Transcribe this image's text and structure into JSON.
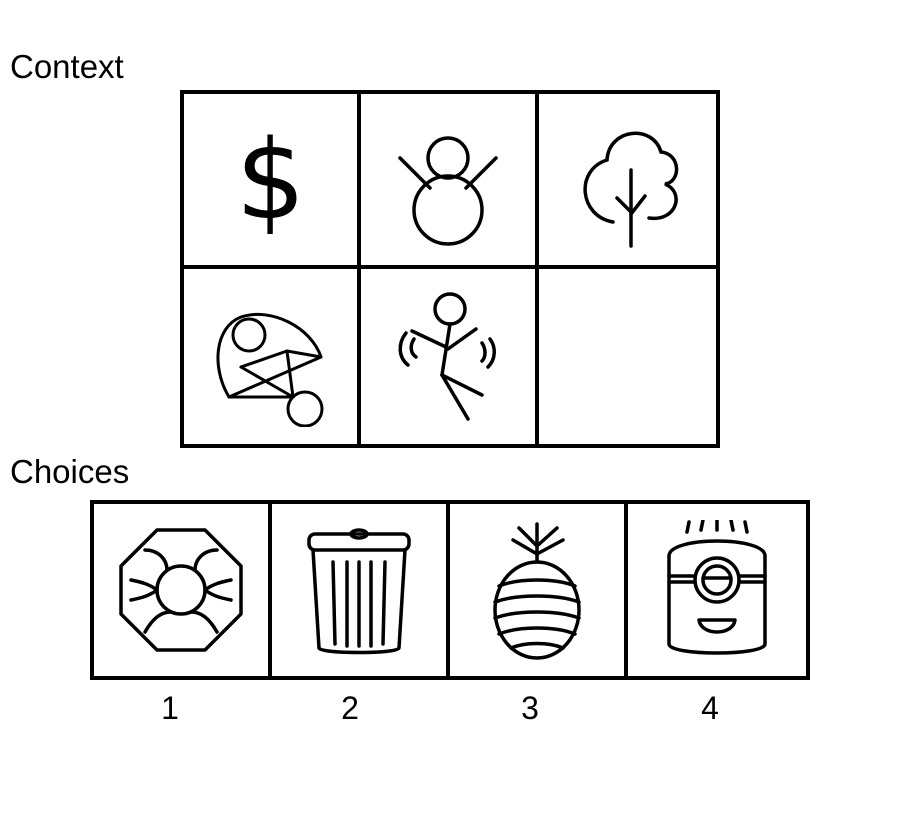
{
  "context": {
    "label": "Context",
    "cells": [
      {
        "icon": "dollar-sign-icon",
        "symbol": "$"
      },
      {
        "icon": "snowman-icon"
      },
      {
        "icon": "tree-icon"
      },
      {
        "icon": "parachute-icon"
      },
      {
        "icon": "dancing-stick-figure-icon"
      },
      {
        "icon": "empty-cell"
      }
    ]
  },
  "choices": {
    "label": "Choices",
    "items": [
      {
        "number": "1",
        "icon": "octagon-sun-icon"
      },
      {
        "number": "2",
        "icon": "trash-can-icon"
      },
      {
        "number": "3",
        "icon": "pineapple-icon"
      },
      {
        "number": "4",
        "icon": "minion-icon"
      }
    ]
  }
}
